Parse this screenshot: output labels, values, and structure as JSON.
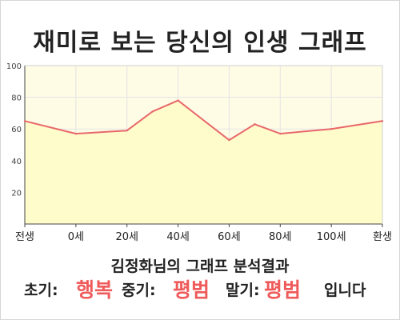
{
  "title": "재미로 보는 당신의 인생 그래프",
  "chart_data": {
    "type": "area",
    "title": "재미로 보는 당신의 인생 그래프",
    "xlabel": "",
    "ylabel": "",
    "x_ticks": [
      "전생",
      "0세",
      "20세",
      "40세",
      "60세",
      "80세",
      "100세",
      "환생"
    ],
    "y_ticks": [
      20,
      40,
      60,
      80,
      100
    ],
    "ylim": [
      0,
      100
    ],
    "grid": true,
    "series": [
      {
        "x": [
          "전생",
          "0세",
          "20세",
          "30세",
          "40세",
          "60세",
          "70세",
          "80세",
          "100세",
          "환생"
        ],
        "values": [
          65,
          57,
          59,
          71,
          78,
          53,
          63,
          57,
          60,
          65
        ]
      }
    ],
    "colors": {
      "line": "#e8676a",
      "fill": "#fffccc",
      "background": "#fffce6"
    }
  },
  "summary": "김정화님의 그래프 분석결과",
  "results": {
    "early_label": "초기:",
    "early_value": "행복",
    "middle_label": "중기:",
    "middle_value": "평범",
    "late_label": "말기:",
    "late_value": "평범",
    "ending": "입니다"
  }
}
